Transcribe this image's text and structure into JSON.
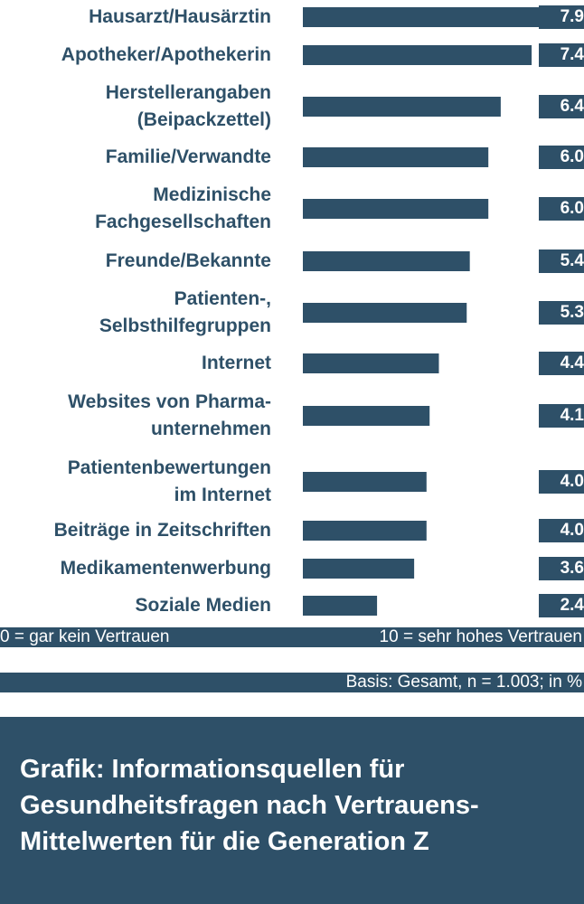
{
  "colors": {
    "bar": "#2e5068",
    "text": "#2e5068",
    "background": "#ffffff"
  },
  "chart_data": {
    "type": "bar",
    "orientation": "horizontal",
    "categories": [
      "Hausarzt/Hausärztin",
      "Apotheker/Apothekerin",
      "Herstellerangaben\n(Beipackzettel)",
      "Familie/Verwandte",
      "Medizinische\nFachgesellschaften",
      "Freunde/Bekannte",
      "Patienten-,\nSelbsthilfegruppen",
      "Internet",
      "Websites von Pharma-\nunternehmen",
      "Patientenbewertungen\nim Internet",
      "Beiträge in Zeitschriften",
      "Medikamentenwerbung",
      "Soziale Medien"
    ],
    "values": [
      7.9,
      7.4,
      6.4,
      6.0,
      6.0,
      5.4,
      5.3,
      4.4,
      4.1,
      4.0,
      4.0,
      3.6,
      2.4
    ],
    "value_labels": [
      "7.9",
      "7.4",
      "6.4",
      "6.0",
      "6.0",
      "5.4",
      "5.3",
      "4.4",
      "4.1",
      "4.0",
      "4.0",
      "3.6",
      "2.4"
    ],
    "xlim": [
      0,
      10
    ],
    "scale_low": "0 = gar kein Vertrauen",
    "scale_high": "10 = sehr hohes Vertrauen",
    "base_note": "Basis: Gesamt, n = 1.003; in %",
    "grid": false,
    "legend": "none"
  },
  "caption": "Grafik: Informationsquellen für\nGesundheitsfragen nach Vertrauens-\nMittelwerten für die Generation Z"
}
